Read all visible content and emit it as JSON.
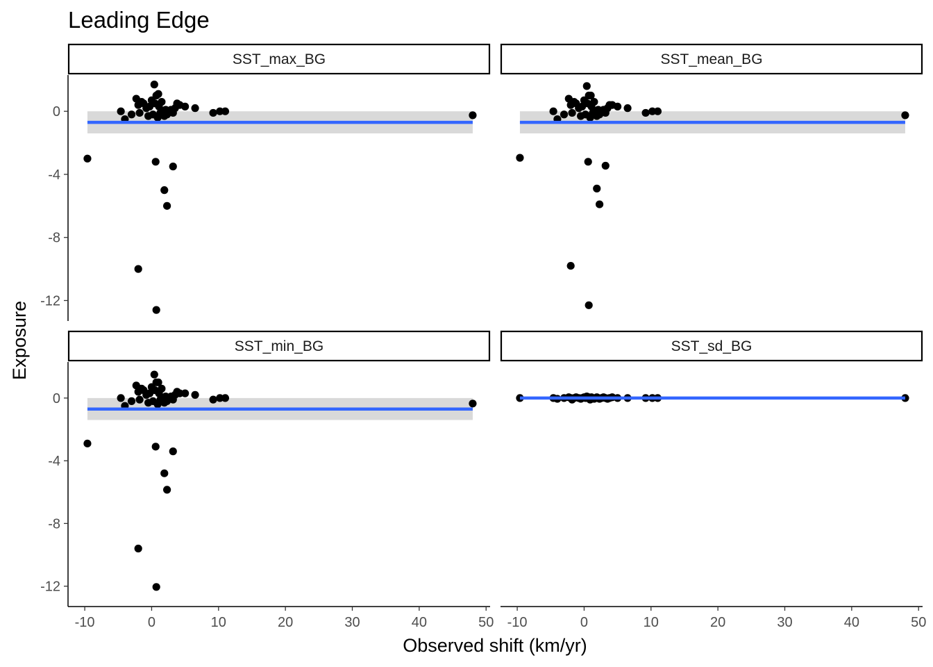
{
  "chart_data": {
    "type": "scatter",
    "title": "Leading Edge",
    "xlabel": "Observed shift (km/yr)",
    "ylabel": "Exposure",
    "xlim": [
      -12.5,
      50.6
    ],
    "x_ticks": [
      -10,
      0,
      10,
      20,
      30,
      40,
      50
    ],
    "x_tick_labels": [
      "-10",
      "0",
      "10",
      "20",
      "30",
      "40",
      "50"
    ],
    "y_ticks": [
      0,
      -4,
      -8,
      -12
    ],
    "y_tick_labels": [
      "0",
      "-4",
      "-8",
      "-12"
    ],
    "grid": false,
    "legend": "none",
    "colors": {
      "points": "#000000",
      "fit_line": "#3366ff",
      "ribbon": "#d9d9d9",
      "strip_border": "#000000"
    },
    "panels": [
      {
        "name": "SST_max_BG",
        "ylim": [
          -13.3,
          2.3
        ],
        "fit": {
          "x_range": [
            -9.6,
            48
          ],
          "y": -0.7,
          "ci": [
            -1.4,
            0.0
          ]
        },
        "points": [
          {
            "x": -9.6,
            "y": -3.0
          },
          {
            "x": -4.6,
            "y": 0.0
          },
          {
            "x": -4.0,
            "y": -0.5
          },
          {
            "x": -3.0,
            "y": -0.2
          },
          {
            "x": -2.3,
            "y": 0.8
          },
          {
            "x": -2.0,
            "y": 0.4
          },
          {
            "x": -1.8,
            "y": -0.1
          },
          {
            "x": -1.5,
            "y": 0.6
          },
          {
            "x": -1.2,
            "y": 0.5
          },
          {
            "x": -0.8,
            "y": 0.2
          },
          {
            "x": -0.5,
            "y": -0.3
          },
          {
            "x": -0.3,
            "y": 0.3
          },
          {
            "x": 0.0,
            "y": 0.7
          },
          {
            "x": 0.2,
            "y": -0.2
          },
          {
            "x": 0.4,
            "y": 1.7
          },
          {
            "x": 0.5,
            "y": 0.5
          },
          {
            "x": 0.7,
            "y": 1.0
          },
          {
            "x": 0.9,
            "y": -0.4
          },
          {
            "x": 1.0,
            "y": 1.1
          },
          {
            "x": 1.1,
            "y": 0.3
          },
          {
            "x": 1.3,
            "y": -0.1
          },
          {
            "x": 1.5,
            "y": 0.6
          },
          {
            "x": 1.7,
            "y": 0.0
          },
          {
            "x": 1.9,
            "y": -0.3
          },
          {
            "x": 2.1,
            "y": 0.1
          },
          {
            "x": 2.3,
            "y": -0.2
          },
          {
            "x": 2.6,
            "y": 0.0
          },
          {
            "x": 2.9,
            "y": 0.1
          },
          {
            "x": 3.2,
            "y": -0.1
          },
          {
            "x": 3.5,
            "y": 0.2
          },
          {
            "x": 3.8,
            "y": 0.5
          },
          {
            "x": 4.2,
            "y": 0.4
          },
          {
            "x": 5.0,
            "y": 0.3
          },
          {
            "x": 6.5,
            "y": 0.2
          },
          {
            "x": 9.2,
            "y": -0.1
          },
          {
            "x": 10.2,
            "y": 0.0
          },
          {
            "x": 11.0,
            "y": 0.0
          },
          {
            "x": 48.0,
            "y": -0.25
          },
          {
            "x": -2.0,
            "y": -10.0
          },
          {
            "x": 0.6,
            "y": -3.2
          },
          {
            "x": 0.7,
            "y": -12.6
          },
          {
            "x": 1.9,
            "y": -5.0
          },
          {
            "x": 2.3,
            "y": -6.0
          },
          {
            "x": 3.2,
            "y": -3.5
          }
        ]
      },
      {
        "name": "SST_mean_BG",
        "ylim": [
          -13.3,
          2.3
        ],
        "fit": {
          "x_range": [
            -9.6,
            48
          ],
          "y": -0.7,
          "ci": [
            -1.4,
            0.0
          ]
        },
        "points": [
          {
            "x": -9.6,
            "y": -2.95
          },
          {
            "x": -4.6,
            "y": 0.0
          },
          {
            "x": -4.0,
            "y": -0.5
          },
          {
            "x": -3.0,
            "y": -0.2
          },
          {
            "x": -2.3,
            "y": 0.8
          },
          {
            "x": -2.0,
            "y": 0.4
          },
          {
            "x": -1.8,
            "y": -0.1
          },
          {
            "x": -1.5,
            "y": 0.6
          },
          {
            "x": -1.2,
            "y": 0.5
          },
          {
            "x": -0.8,
            "y": 0.2
          },
          {
            "x": -0.5,
            "y": -0.3
          },
          {
            "x": -0.3,
            "y": 0.3
          },
          {
            "x": 0.0,
            "y": 0.7
          },
          {
            "x": 0.2,
            "y": -0.2
          },
          {
            "x": 0.4,
            "y": 1.6
          },
          {
            "x": 0.5,
            "y": 0.5
          },
          {
            "x": 0.7,
            "y": 1.0
          },
          {
            "x": 0.9,
            "y": -0.4
          },
          {
            "x": 1.0,
            "y": 1.0
          },
          {
            "x": 1.1,
            "y": 0.3
          },
          {
            "x": 1.3,
            "y": -0.1
          },
          {
            "x": 1.5,
            "y": 0.6
          },
          {
            "x": 1.7,
            "y": 0.0
          },
          {
            "x": 1.9,
            "y": -0.3
          },
          {
            "x": 2.1,
            "y": 0.1
          },
          {
            "x": 2.3,
            "y": -0.2
          },
          {
            "x": 2.6,
            "y": 0.0
          },
          {
            "x": 2.9,
            "y": 0.1
          },
          {
            "x": 3.2,
            "y": -0.1
          },
          {
            "x": 3.5,
            "y": 0.2
          },
          {
            "x": 3.8,
            "y": 0.4
          },
          {
            "x": 4.2,
            "y": 0.4
          },
          {
            "x": 5.0,
            "y": 0.3
          },
          {
            "x": 6.5,
            "y": 0.2
          },
          {
            "x": 9.2,
            "y": -0.1
          },
          {
            "x": 10.2,
            "y": 0.0
          },
          {
            "x": 11.0,
            "y": 0.0
          },
          {
            "x": 48.0,
            "y": -0.25
          },
          {
            "x": -2.0,
            "y": -9.8
          },
          {
            "x": 0.6,
            "y": -3.2
          },
          {
            "x": 0.7,
            "y": -12.3
          },
          {
            "x": 1.9,
            "y": -4.9
          },
          {
            "x": 2.3,
            "y": -5.9
          },
          {
            "x": 3.2,
            "y": -3.45
          }
        ]
      },
      {
        "name": "SST_min_BG",
        "ylim": [
          -13.3,
          2.3
        ],
        "fit": {
          "x_range": [
            -9.6,
            48
          ],
          "y": -0.7,
          "ci": [
            -1.4,
            0.0
          ]
        },
        "points": [
          {
            "x": -9.6,
            "y": -2.9
          },
          {
            "x": -4.6,
            "y": 0.0
          },
          {
            "x": -4.0,
            "y": -0.5
          },
          {
            "x": -3.0,
            "y": -0.2
          },
          {
            "x": -2.3,
            "y": 0.8
          },
          {
            "x": -2.0,
            "y": 0.4
          },
          {
            "x": -1.8,
            "y": -0.1
          },
          {
            "x": -1.5,
            "y": 0.6
          },
          {
            "x": -1.2,
            "y": 0.5
          },
          {
            "x": -0.8,
            "y": 0.2
          },
          {
            "x": -0.5,
            "y": -0.3
          },
          {
            "x": -0.3,
            "y": 0.3
          },
          {
            "x": 0.0,
            "y": 0.7
          },
          {
            "x": 0.2,
            "y": -0.2
          },
          {
            "x": 0.4,
            "y": 1.5
          },
          {
            "x": 0.5,
            "y": 0.5
          },
          {
            "x": 0.7,
            "y": 1.0
          },
          {
            "x": 0.9,
            "y": -0.4
          },
          {
            "x": 1.0,
            "y": 1.0
          },
          {
            "x": 1.1,
            "y": 0.3
          },
          {
            "x": 1.3,
            "y": -0.1
          },
          {
            "x": 1.5,
            "y": 0.6
          },
          {
            "x": 1.7,
            "y": 0.0
          },
          {
            "x": 1.9,
            "y": -0.3
          },
          {
            "x": 2.1,
            "y": 0.1
          },
          {
            "x": 2.3,
            "y": -0.2
          },
          {
            "x": 2.6,
            "y": 0.0
          },
          {
            "x": 2.9,
            "y": 0.1
          },
          {
            "x": 3.2,
            "y": -0.1
          },
          {
            "x": 3.5,
            "y": 0.2
          },
          {
            "x": 3.8,
            "y": 0.4
          },
          {
            "x": 4.2,
            "y": 0.3
          },
          {
            "x": 5.0,
            "y": 0.3
          },
          {
            "x": 6.5,
            "y": 0.2
          },
          {
            "x": 9.2,
            "y": -0.1
          },
          {
            "x": 10.2,
            "y": 0.0
          },
          {
            "x": 11.0,
            "y": 0.0
          },
          {
            "x": 48.0,
            "y": -0.35
          },
          {
            "x": -2.0,
            "y": -9.6
          },
          {
            "x": 0.6,
            "y": -3.1
          },
          {
            "x": 0.7,
            "y": -12.05
          },
          {
            "x": 1.9,
            "y": -4.8
          },
          {
            "x": 2.3,
            "y": -5.85
          },
          {
            "x": 3.2,
            "y": -3.4
          }
        ]
      },
      {
        "name": "SST_sd_BG",
        "ylim": [
          -13.3,
          2.3
        ],
        "fit": {
          "x_range": [
            -9.6,
            48
          ],
          "y": 0.0,
          "ci": [
            -0.05,
            0.05
          ]
        },
        "points": [
          {
            "x": -9.6,
            "y": 0.0
          },
          {
            "x": -4.6,
            "y": 0.0
          },
          {
            "x": -4.0,
            "y": -0.05
          },
          {
            "x": -3.0,
            "y": 0.0
          },
          {
            "x": -2.3,
            "y": 0.05
          },
          {
            "x": -2.0,
            "y": 0.0
          },
          {
            "x": -1.8,
            "y": -0.1
          },
          {
            "x": -1.5,
            "y": 0.0
          },
          {
            "x": -1.2,
            "y": 0.05
          },
          {
            "x": -0.8,
            "y": 0.0
          },
          {
            "x": -0.5,
            "y": -0.05
          },
          {
            "x": -0.3,
            "y": 0.0
          },
          {
            "x": 0.0,
            "y": 0.05
          },
          {
            "x": 0.2,
            "y": 0.0
          },
          {
            "x": 0.4,
            "y": 0.1
          },
          {
            "x": 0.5,
            "y": 0.0
          },
          {
            "x": 0.7,
            "y": 0.05
          },
          {
            "x": 0.9,
            "y": -0.1
          },
          {
            "x": 1.0,
            "y": 0.0
          },
          {
            "x": 1.1,
            "y": 0.05
          },
          {
            "x": 1.3,
            "y": 0.0
          },
          {
            "x": 1.5,
            "y": -0.05
          },
          {
            "x": 1.7,
            "y": 0.0
          },
          {
            "x": 1.9,
            "y": 0.05
          },
          {
            "x": 2.1,
            "y": 0.0
          },
          {
            "x": 2.3,
            "y": -0.05
          },
          {
            "x": 2.6,
            "y": 0.0
          },
          {
            "x": 2.9,
            "y": 0.05
          },
          {
            "x": 3.2,
            "y": 0.0
          },
          {
            "x": 3.5,
            "y": -0.05
          },
          {
            "x": 3.8,
            "y": 0.0
          },
          {
            "x": 4.2,
            "y": 0.05
          },
          {
            "x": 5.0,
            "y": 0.0
          },
          {
            "x": 6.5,
            "y": 0.0
          },
          {
            "x": 9.2,
            "y": 0.0
          },
          {
            "x": 10.2,
            "y": 0.0
          },
          {
            "x": 11.0,
            "y": 0.0
          },
          {
            "x": 48.0,
            "y": 0.0
          }
        ]
      }
    ]
  }
}
